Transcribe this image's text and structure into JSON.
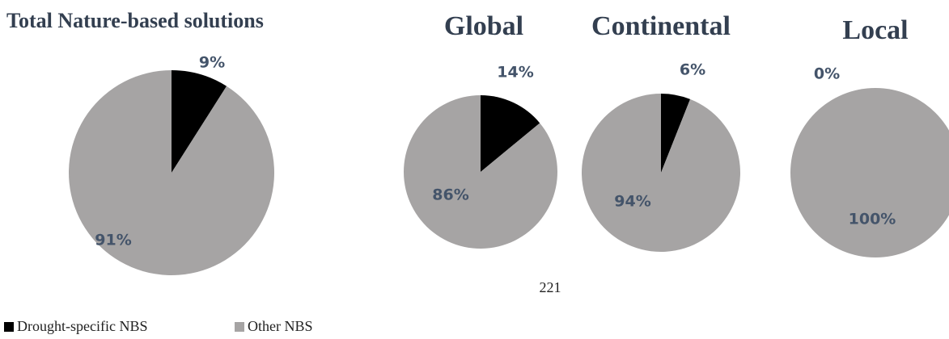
{
  "chart_data": [
    {
      "type": "pie",
      "title": "Total Nature-based solutions",
      "categories": [
        "Drought-specific NBS",
        "Other NBS"
      ],
      "values": [
        9,
        91
      ],
      "value_labels": [
        "9%",
        "91%"
      ],
      "colors": [
        "#000000",
        "#a6a4a4"
      ]
    },
    {
      "type": "pie",
      "title": "Global",
      "categories": [
        "Drought-specific NBS",
        "Other NBS"
      ],
      "values": [
        14,
        86
      ],
      "value_labels": [
        "14%",
        "86%"
      ],
      "colors": [
        "#000000",
        "#a6a4a4"
      ]
    },
    {
      "type": "pie",
      "title": "Continental",
      "categories": [
        "Drought-specific NBS",
        "Other NBS"
      ],
      "values": [
        6,
        94
      ],
      "value_labels": [
        "6%",
        "94%"
      ],
      "colors": [
        "#000000",
        "#a6a4a4"
      ]
    },
    {
      "type": "pie",
      "title": "Local",
      "categories": [
        "Drought-specific NBS",
        "Other NBS"
      ],
      "values": [
        0,
        100
      ],
      "value_labels": [
        "0%",
        "100%"
      ],
      "colors": [
        "#000000",
        "#a6a4a4"
      ]
    }
  ],
  "page_number": "221"
}
